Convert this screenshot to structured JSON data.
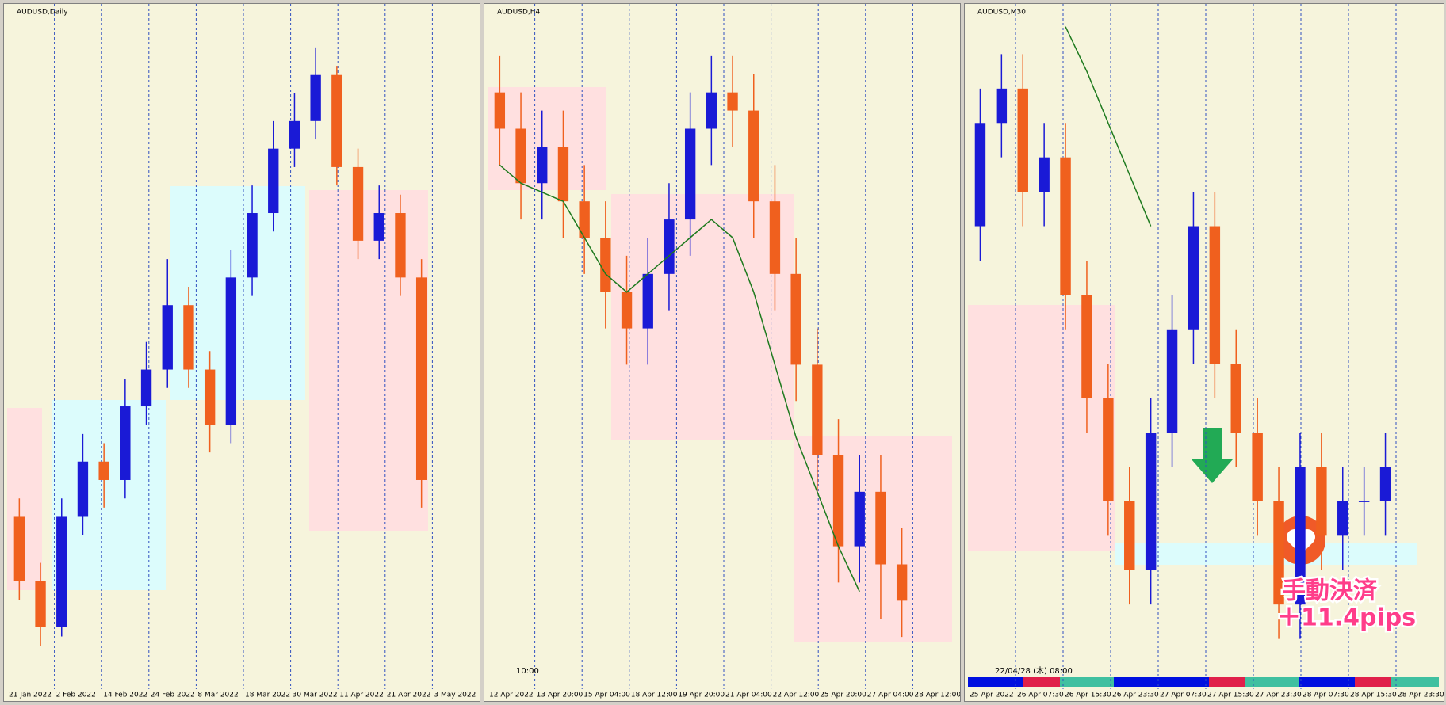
{
  "chart_data": [
    {
      "type": "candlestick",
      "title": "AUDUSD,Daily",
      "xticks": [
        "21 Jan 2022",
        "2 Feb 2022",
        "14 Feb 2022",
        "24 Feb 2022",
        "8 Mar 2022",
        "18 Mar 2022",
        "30 Mar 2022",
        "11 Apr 2022",
        "21 Apr 2022",
        "3 May 2022"
      ],
      "open": [
        0.712,
        0.705,
        0.7,
        0.712,
        0.718,
        0.716,
        0.724,
        0.728,
        0.735,
        0.728,
        0.722,
        0.738,
        0.745,
        0.752,
        0.755,
        0.76,
        0.75,
        0.742,
        0.745,
        0.738
      ],
      "high": [
        0.714,
        0.707,
        0.714,
        0.721,
        0.72,
        0.727,
        0.731,
        0.74,
        0.737,
        0.73,
        0.741,
        0.748,
        0.755,
        0.758,
        0.763,
        0.761,
        0.752,
        0.748,
        0.747,
        0.74
      ],
      "low": [
        0.703,
        0.698,
        0.699,
        0.71,
        0.713,
        0.714,
        0.722,
        0.726,
        0.726,
        0.719,
        0.72,
        0.736,
        0.743,
        0.75,
        0.753,
        0.748,
        0.74,
        0.74,
        0.736,
        0.713
      ],
      "close": [
        0.705,
        0.7,
        0.712,
        0.718,
        0.716,
        0.724,
        0.728,
        0.735,
        0.728,
        0.722,
        0.738,
        0.745,
        0.752,
        0.755,
        0.76,
        0.75,
        0.742,
        0.745,
        0.738,
        0.716
      ],
      "ylim": [
        0.695,
        0.766
      ],
      "up_color": "#1a1ad6",
      "down_color": "#f0601e"
    },
    {
      "type": "candlestick",
      "title": "AUDUSD,H4",
      "time_label": "10:00",
      "xticks": [
        "12 Apr 2022",
        "13 Apr 20:00",
        "15 Apr 04:00",
        "18 Apr 12:00",
        "19 Apr 20:00",
        "21 Apr 04:00",
        "22 Apr 12:00",
        "25 Apr 20:00",
        "27 Apr 04:00",
        "28 Apr 12:00"
      ],
      "open": [
        0.744,
        0.742,
        0.739,
        0.741,
        0.738,
        0.736,
        0.733,
        0.731,
        0.734,
        0.737,
        0.742,
        0.744,
        0.743,
        0.738,
        0.734,
        0.729,
        0.724,
        0.719,
        0.722,
        0.718
      ],
      "high": [
        0.746,
        0.744,
        0.743,
        0.743,
        0.74,
        0.738,
        0.735,
        0.736,
        0.739,
        0.744,
        0.746,
        0.746,
        0.745,
        0.74,
        0.736,
        0.731,
        0.726,
        0.724,
        0.724,
        0.72
      ],
      "low": [
        0.74,
        0.737,
        0.737,
        0.736,
        0.734,
        0.731,
        0.729,
        0.729,
        0.732,
        0.735,
        0.74,
        0.741,
        0.736,
        0.732,
        0.727,
        0.722,
        0.717,
        0.717,
        0.715,
        0.714
      ],
      "close": [
        0.742,
        0.739,
        0.741,
        0.738,
        0.736,
        0.733,
        0.731,
        0.734,
        0.737,
        0.742,
        0.744,
        0.743,
        0.738,
        0.734,
        0.729,
        0.724,
        0.719,
        0.722,
        0.718,
        0.716
      ],
      "ma": [
        0.74,
        0.739,
        0.7385,
        0.738,
        0.736,
        0.734,
        0.733,
        0.734,
        0.735,
        0.736,
        0.737,
        0.736,
        0.733,
        0.729,
        0.725,
        0.722,
        0.719,
        0.7165,
        null,
        null
      ],
      "ma_color": "#1e7a1e",
      "ylim": [
        0.712,
        0.748
      ],
      "up_color": "#1a1ad6",
      "down_color": "#f0601e"
    },
    {
      "type": "candlestick",
      "title": "AUDUSD,M30",
      "time_label": "22/04/28 (木) 08:00",
      "annotations": [
        "手動決済",
        "＋11.4pips"
      ],
      "xticks": [
        "25 Apr 2022",
        "26 Apr 07:30",
        "26 Apr 15:30",
        "26 Apr 23:30",
        "27 Apr 07:30",
        "27 Apr 15:30",
        "27 Apr 23:30",
        "28 Apr 07:30",
        "28 Apr 15:30",
        "28 Apr 23:30"
      ],
      "open": [
        0.716,
        0.719,
        0.72,
        0.717,
        0.718,
        0.714,
        0.711,
        0.708,
        0.706,
        0.71,
        0.713,
        0.716,
        0.712,
        0.71,
        0.708,
        0.705,
        0.709,
        0.707,
        0.708,
        0.708
      ],
      "high": [
        0.72,
        0.721,
        0.721,
        0.719,
        0.719,
        0.715,
        0.712,
        0.709,
        0.711,
        0.714,
        0.717,
        0.717,
        0.713,
        0.711,
        0.709,
        0.71,
        0.71,
        0.709,
        0.709,
        0.71
      ],
      "low": [
        0.715,
        0.718,
        0.716,
        0.716,
        0.713,
        0.71,
        0.707,
        0.705,
        0.705,
        0.709,
        0.712,
        0.711,
        0.709,
        0.707,
        0.704,
        0.704,
        0.706,
        0.706,
        0.707,
        0.707
      ],
      "close": [
        0.719,
        0.72,
        0.717,
        0.718,
        0.714,
        0.711,
        0.708,
        0.706,
        0.71,
        0.713,
        0.716,
        0.712,
        0.71,
        0.708,
        0.705,
        0.709,
        0.707,
        0.708,
        0.708,
        0.709
      ],
      "ma": [
        null,
        null,
        null,
        null,
        0.7218,
        0.7205,
        0.719,
        0.7175,
        0.716,
        null,
        null,
        null,
        null,
        null,
        null,
        null,
        null,
        null,
        null,
        null
      ],
      "ma_color": "#1e7a1e",
      "ylim": [
        0.703,
        0.722
      ],
      "up_color": "#1a1ad6",
      "down_color": "#f0601e"
    }
  ]
}
